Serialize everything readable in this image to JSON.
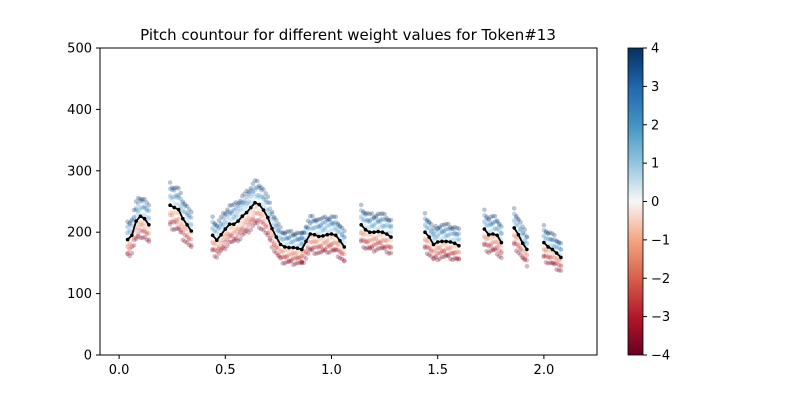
{
  "chart_data": {
    "type": "scatter",
    "title": "Pitch countour for different weight values for Token#13",
    "xlabel": "",
    "ylabel": "",
    "xlim": [
      -0.09,
      2.25
    ],
    "ylim": [
      0,
      500
    ],
    "xticks": [
      0.0,
      0.5,
      1.0,
      1.5,
      2.0
    ],
    "xtick_labels": [
      "0.0",
      "0.5",
      "1.0",
      "1.5",
      "2.0"
    ],
    "yticks": [
      0,
      100,
      200,
      300,
      400,
      500
    ],
    "ytick_labels": [
      "0",
      "100",
      "200",
      "300",
      "400",
      "500"
    ],
    "grid": false,
    "colormap": {
      "name": "RdBu",
      "min": -4,
      "max": 4,
      "ticks": [
        4,
        3,
        2,
        1,
        0,
        -1,
        -2,
        -3,
        -4
      ],
      "tick_labels": [
        "4",
        "3",
        "2",
        "1",
        "0",
        "−1",
        "−2",
        "−3",
        "−4"
      ],
      "low_color": "#67001f",
      "mid_color": "#f7f7f7",
      "high_color": "#053061"
    },
    "weights": [
      -4,
      -3,
      -2,
      -1,
      0,
      1,
      2,
      3,
      4
    ],
    "reference_series": {
      "name": "weight 0",
      "color": "#000000",
      "segments": [
        {
          "x": [
            0.04,
            0.06,
            0.08,
            0.1,
            0.12,
            0.14
          ],
          "y": [
            188,
            195,
            218,
            226,
            222,
            212
          ]
        },
        {
          "x": [
            0.24,
            0.26,
            0.28,
            0.3,
            0.32,
            0.34
          ],
          "y": [
            244,
            240,
            237,
            222,
            212,
            202
          ]
        },
        {
          "x": [
            0.44,
            0.46,
            0.48,
            0.5,
            0.52,
            0.54,
            0.56,
            0.58,
            0.6,
            0.62,
            0.64,
            0.66,
            0.68,
            0.7,
            0.72,
            0.74,
            0.76,
            0.78,
            0.8,
            0.82,
            0.84,
            0.86
          ],
          "y": [
            195,
            187,
            196,
            205,
            213,
            213,
            218,
            226,
            232,
            240,
            248,
            245,
            236,
            224,
            206,
            192,
            180,
            176,
            175,
            175,
            174,
            172
          ]
        },
        {
          "x": [
            0.86,
            0.88,
            0.9,
            0.92,
            0.94,
            0.96,
            0.98,
            1.0,
            1.02,
            1.04,
            1.06
          ],
          "y": [
            172,
            185,
            197,
            196,
            193,
            194,
            196,
            197,
            195,
            186,
            176
          ]
        },
        {
          "x": [
            1.14,
            1.16,
            1.18,
            1.2,
            1.22,
            1.24,
            1.26,
            1.28
          ],
          "y": [
            212,
            204,
            200,
            200,
            201,
            200,
            197,
            192
          ]
        },
        {
          "x": [
            1.44,
            1.46,
            1.48,
            1.5,
            1.52,
            1.54,
            1.56,
            1.58,
            1.6
          ],
          "y": [
            200,
            192,
            180,
            184,
            185,
            185,
            184,
            182,
            178
          ]
        },
        {
          "x": [
            1.72,
            1.74,
            1.76,
            1.78,
            1.8
          ],
          "y": [
            205,
            196,
            197,
            195,
            183
          ]
        },
        {
          "x": [
            1.86,
            1.88,
            1.9,
            1.92
          ],
          "y": [
            207,
            196,
            182,
            172
          ]
        },
        {
          "x": [
            2.0,
            2.02,
            2.04,
            2.06,
            2.08
          ],
          "y": [
            183,
            176,
            172,
            166,
            159
          ]
        }
      ]
    }
  }
}
